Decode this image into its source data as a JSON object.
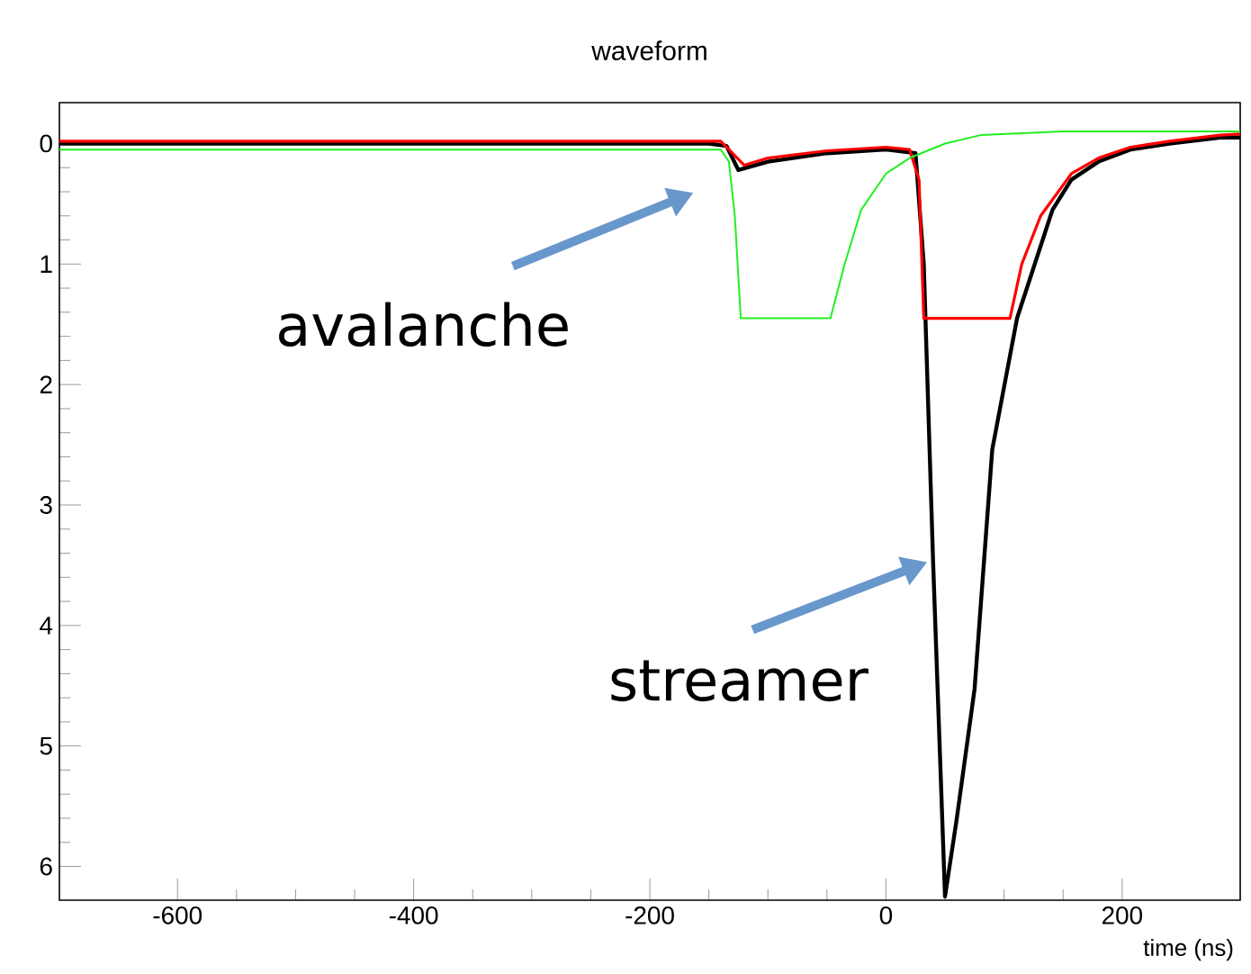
{
  "chart_data": {
    "type": "line",
    "title": "waveform",
    "xlabel": "time (ns)",
    "series": [
      {
        "color": "#000000",
        "x": [
          -700,
          -600,
          -500,
          -400,
          -300,
          -200,
          -150,
          -135,
          -125,
          -100,
          -50,
          0,
          25,
          32,
          40,
          50,
          60,
          75,
          90,
          111,
          141,
          157,
          180,
          207,
          240,
          283,
          300
        ],
        "values": [
          0,
          0,
          0,
          0,
          0,
          0,
          0,
          0.02,
          0.22,
          0.15,
          0.08,
          0.05,
          0.08,
          1.0,
          3.5,
          6.25,
          5.6,
          4.53,
          2.54,
          1.45,
          0.55,
          0.3,
          0.15,
          0.05,
          0.0,
          -0.05,
          -0.05
        ]
      },
      {
        "color": "#ff0000",
        "x": [
          -700,
          -600,
          -500,
          -400,
          -300,
          -200,
          -140,
          -130,
          -120,
          -100,
          -50,
          0,
          20,
          28,
          32,
          105,
          115,
          131,
          157,
          180,
          207,
          240,
          283,
          300
        ],
        "values": [
          -0.02,
          -0.02,
          -0.02,
          -0.02,
          -0.02,
          -0.02,
          -0.02,
          0.08,
          0.18,
          0.12,
          0.06,
          0.03,
          0.05,
          0.3,
          1.45,
          1.45,
          1.0,
          0.6,
          0.25,
          0.12,
          0.03,
          -0.02,
          -0.07,
          -0.08
        ]
      },
      {
        "color": "#22ee22",
        "x": [
          -700,
          -600,
          -500,
          -400,
          -300,
          -200,
          -140,
          -133,
          -128,
          -123,
          -47,
          -35,
          -21,
          0,
          20,
          50,
          80,
          150,
          200,
          300
        ],
        "values": [
          0.05,
          0.05,
          0.05,
          0.05,
          0.05,
          0.05,
          0.05,
          0.15,
          0.6,
          1.45,
          1.45,
          1.0,
          0.55,
          0.25,
          0.12,
          0.0,
          -0.07,
          -0.1,
          -0.1,
          -0.1
        ]
      }
    ],
    "xlim": [
      -700,
      300
    ],
    "ylim": [
      6.28,
      -0.34
    ],
    "xticks": [
      -600,
      -400,
      -200,
      0,
      200
    ],
    "yticks": [
      0,
      1,
      2,
      3,
      4,
      5,
      6
    ],
    "grid": false,
    "marker": "none",
    "line_style": "solid",
    "annotations": [
      "avalanche",
      "streamer"
    ]
  }
}
